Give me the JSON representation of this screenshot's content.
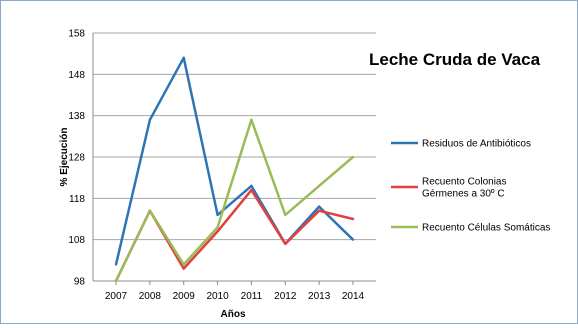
{
  "chart_data": {
    "type": "line",
    "title": "Leche Cruda de Vaca",
    "xlabel": "Años",
    "ylabel": "% Ejecución",
    "categories": [
      "2007",
      "2008",
      "2009",
      "2010",
      "2011",
      "2012",
      "2013",
      "2014"
    ],
    "yticks": [
      "98",
      "108",
      "118",
      "128",
      "138",
      "148",
      "158"
    ],
    "ylim": [
      98,
      158
    ],
    "grid": "horizontal",
    "legend_position": "right",
    "series": [
      {
        "name": "Residuos de Antibióticos",
        "color": "#2e75b6",
        "values": [
          102,
          137,
          152,
          114,
          121,
          107,
          116,
          108
        ]
      },
      {
        "name": "Recuento Colonias Gérmenes a 30º C",
        "color": "#e0413c",
        "values": [
          98,
          115,
          101,
          110,
          120,
          107,
          115,
          113
        ]
      },
      {
        "name": "Recuento Células Somáticas",
        "color": "#9bbb59",
        "values": [
          98,
          115,
          102,
          111,
          137,
          114,
          121,
          128
        ]
      }
    ]
  }
}
